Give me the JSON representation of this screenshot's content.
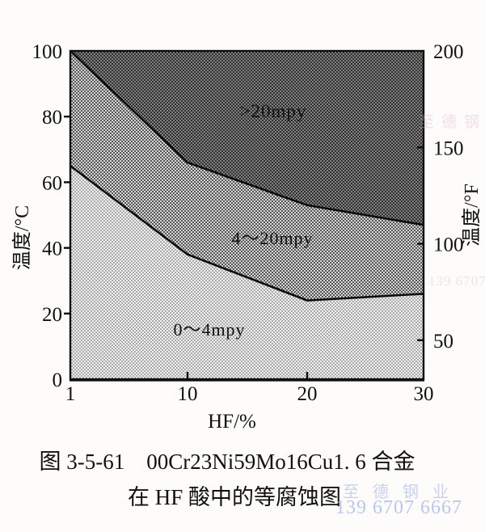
{
  "chart_data": {
    "type": "area",
    "description": "iso-corrosion diagram",
    "xlabel": "HF/%",
    "ylabel_left": "温度/°C",
    "ylabel_right": "温度/°F",
    "xlim": [
      1,
      30
    ],
    "ylim_left_c": [
      0,
      100
    ],
    "x_ticks": [
      "1",
      "10",
      "20",
      "30"
    ],
    "x_ticks_marked": [
      10,
      20
    ],
    "y_ticks_left": [
      "0",
      "20",
      "40",
      "60",
      "80",
      "100"
    ],
    "y_ticks_left_values": [
      0,
      20,
      40,
      60,
      80,
      100
    ],
    "y_ticks_left_marked": [
      20,
      40,
      60,
      80
    ],
    "y_ticks_right": [
      "50",
      "100",
      "150",
      "200"
    ],
    "y_ticks_right_values": [
      50,
      100,
      150,
      200
    ],
    "y_ticks_right_marked": [
      50,
      100,
      150
    ],
    "grid": false,
    "legend": "none",
    "series": [
      {
        "name": "boundary-20mpy",
        "x": [
          1,
          10,
          20,
          30
        ],
        "y_c": [
          100,
          66,
          53,
          47
        ]
      },
      {
        "name": "boundary-4mpy",
        "x": [
          1,
          10,
          20,
          30
        ],
        "y_c": [
          65,
          38,
          24,
          26
        ]
      }
    ],
    "regions": [
      {
        "label": ">20mpy",
        "position": "top",
        "fill_light": "#828282",
        "fill_dark": "#2e2e2e"
      },
      {
        "label": "4～20mpy",
        "position": "middle",
        "fill_light": "#d6d6d6",
        "fill_dark": "#565656"
      },
      {
        "label": "0～4mpy",
        "position": "bottom",
        "fill_light": "#f1f1f1",
        "fill_dark": "#a9a9a9"
      }
    ],
    "line_color": "#0d0d0d"
  },
  "caption": {
    "line1": "图 3-5-61　00Cr23Ni59Mo16Cu1. 6 合金",
    "line2": "在 HF 酸中的等腐蚀图"
  },
  "watermark": {
    "company": "至德钢业",
    "phone": "139 6707 6667",
    "company_color": "#c9d1ef",
    "phone_color": "#b9c6ed"
  }
}
